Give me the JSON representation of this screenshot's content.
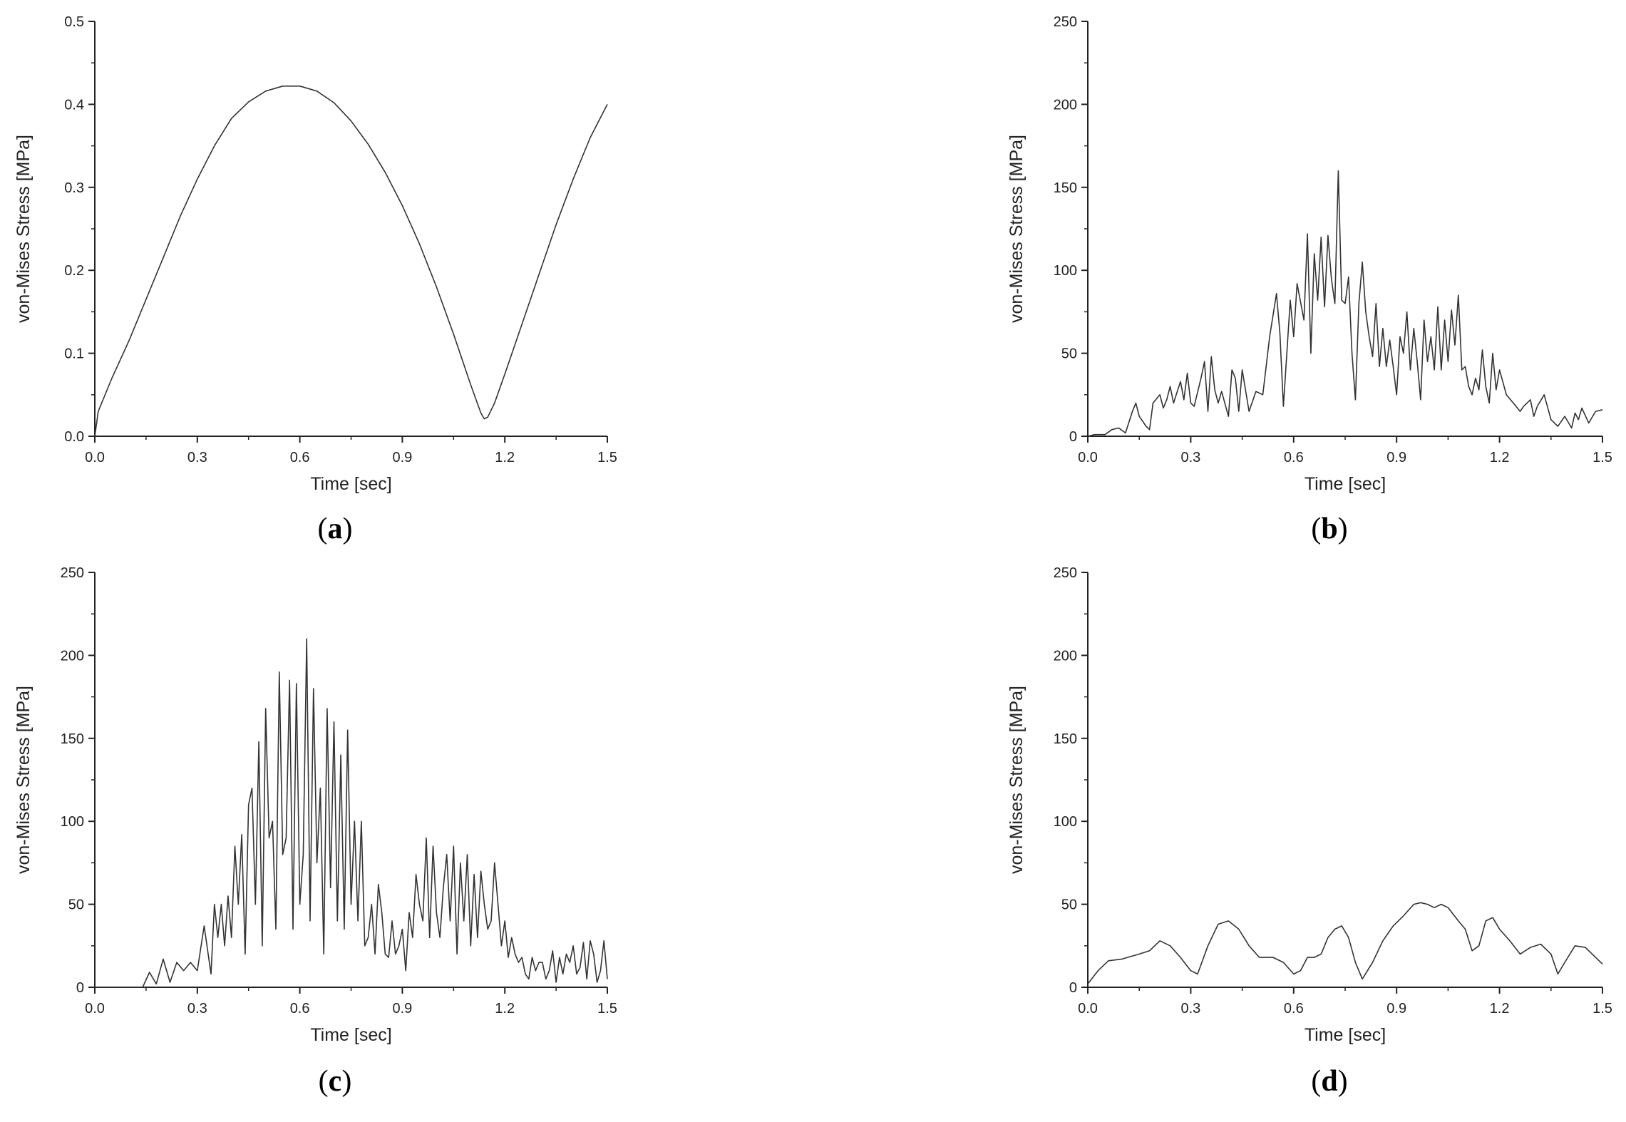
{
  "chart_data": [
    {
      "type": "line",
      "panel_label": "a",
      "xlabel": "Time [sec]",
      "ylabel": "von-Mises Stress [MPa]",
      "xlim": [
        0,
        1.5
      ],
      "ylim": [
        0,
        0.5
      ],
      "xticks": [
        0.0,
        0.3,
        0.6,
        0.9,
        1.2,
        1.5
      ],
      "yticks": [
        0.0,
        0.1,
        0.2,
        0.3,
        0.4,
        0.5
      ],
      "tick_decimals": 1,
      "grid": false,
      "series": [
        {
          "x": [
            0,
            0.01,
            0.05,
            0.1,
            0.15,
            0.2,
            0.25,
            0.3,
            0.35,
            0.4,
            0.45,
            0.5,
            0.55,
            0.6,
            0.65,
            0.7,
            0.75,
            0.8,
            0.85,
            0.9,
            0.95,
            1.0,
            1.05,
            1.1,
            1.13,
            1.14,
            1.15,
            1.17,
            1.2,
            1.25,
            1.3,
            1.35,
            1.4,
            1.45,
            1.5
          ],
          "y": [
            0.0,
            0.03,
            0.07,
            0.115,
            0.165,
            0.215,
            0.265,
            0.31,
            0.35,
            0.383,
            0.403,
            0.416,
            0.422,
            0.422,
            0.416,
            0.402,
            0.38,
            0.352,
            0.318,
            0.278,
            0.232,
            0.18,
            0.123,
            0.062,
            0.028,
            0.021,
            0.023,
            0.04,
            0.075,
            0.135,
            0.195,
            0.255,
            0.31,
            0.36,
            0.4
          ]
        }
      ]
    },
    {
      "type": "line",
      "panel_label": "b",
      "xlabel": "Time [sec]",
      "ylabel": "von-Mises Stress [MPa]",
      "xlim": [
        0,
        1.5
      ],
      "ylim": [
        0,
        250
      ],
      "xticks": [
        0.0,
        0.3,
        0.6,
        0.9,
        1.2,
        1.5
      ],
      "yticks": [
        0,
        50,
        100,
        150,
        200,
        250
      ],
      "tick_decimals": 0,
      "grid": false,
      "series": [
        {
          "x": [
            0,
            0.02,
            0.05,
            0.07,
            0.09,
            0.11,
            0.13,
            0.14,
            0.15,
            0.17,
            0.18,
            0.19,
            0.21,
            0.22,
            0.23,
            0.24,
            0.25,
            0.27,
            0.28,
            0.29,
            0.3,
            0.31,
            0.33,
            0.34,
            0.35,
            0.36,
            0.37,
            0.38,
            0.39,
            0.41,
            0.42,
            0.43,
            0.44,
            0.45,
            0.47,
            0.49,
            0.51,
            0.53,
            0.55,
            0.56,
            0.57,
            0.59,
            0.6,
            0.61,
            0.63,
            0.64,
            0.65,
            0.66,
            0.67,
            0.68,
            0.69,
            0.7,
            0.71,
            0.72,
            0.73,
            0.74,
            0.75,
            0.76,
            0.77,
            0.78,
            0.79,
            0.8,
            0.81,
            0.82,
            0.83,
            0.84,
            0.85,
            0.86,
            0.87,
            0.88,
            0.89,
            0.9,
            0.91,
            0.92,
            0.93,
            0.94,
            0.95,
            0.96,
            0.97,
            0.98,
            0.99,
            1.0,
            1.01,
            1.02,
            1.03,
            1.04,
            1.05,
            1.06,
            1.07,
            1.08,
            1.09,
            1.1,
            1.11,
            1.12,
            1.13,
            1.14,
            1.15,
            1.16,
            1.17,
            1.18,
            1.19,
            1.2,
            1.22,
            1.24,
            1.26,
            1.27,
            1.28,
            1.29,
            1.3,
            1.31,
            1.33,
            1.35,
            1.37,
            1.39,
            1.41,
            1.42,
            1.43,
            1.44,
            1.46,
            1.48,
            1.5
          ],
          "y": [
            0,
            1,
            1,
            4,
            5,
            2,
            15,
            20,
            12,
            6,
            4,
            20,
            25,
            17,
            22,
            30,
            20,
            33,
            22,
            38,
            20,
            18,
            35,
            45,
            15,
            48,
            28,
            20,
            27,
            12,
            40,
            35,
            15,
            40,
            15,
            27,
            25,
            60,
            86,
            62,
            18,
            82,
            60,
            92,
            70,
            122,
            50,
            110,
            82,
            120,
            78,
            121,
            95,
            80,
            160,
            82,
            80,
            96,
            50,
            22,
            80,
            105,
            75,
            60,
            48,
            80,
            42,
            65,
            42,
            58,
            42,
            25,
            60,
            50,
            75,
            40,
            65,
            45,
            22,
            70,
            45,
            60,
            40,
            78,
            40,
            70,
            45,
            76,
            55,
            85,
            40,
            42,
            30,
            25,
            35,
            28,
            52,
            30,
            20,
            50,
            28,
            40,
            25,
            20,
            15,
            18,
            20,
            22,
            12,
            18,
            25,
            10,
            6,
            12,
            5,
            14,
            10,
            17,
            8,
            15,
            16
          ]
        }
      ]
    },
    {
      "type": "line",
      "panel_label": "c",
      "xlabel": "Time [sec]",
      "ylabel": "von-Mises Stress [MPa]",
      "xlim": [
        0,
        1.5
      ],
      "ylim": [
        0,
        250
      ],
      "xticks": [
        0.0,
        0.3,
        0.6,
        0.9,
        1.2,
        1.5
      ],
      "yticks": [
        0,
        50,
        100,
        150,
        200,
        250
      ],
      "tick_decimals": 0,
      "grid": false,
      "series": [
        {
          "x": [
            0,
            0.14,
            0.16,
            0.18,
            0.2,
            0.22,
            0.24,
            0.26,
            0.28,
            0.3,
            0.32,
            0.34,
            0.35,
            0.36,
            0.37,
            0.38,
            0.39,
            0.4,
            0.41,
            0.42,
            0.43,
            0.44,
            0.45,
            0.46,
            0.47,
            0.48,
            0.49,
            0.5,
            0.51,
            0.52,
            0.53,
            0.54,
            0.55,
            0.56,
            0.57,
            0.58,
            0.59,
            0.6,
            0.61,
            0.62,
            0.63,
            0.64,
            0.65,
            0.66,
            0.67,
            0.68,
            0.69,
            0.7,
            0.71,
            0.72,
            0.73,
            0.74,
            0.75,
            0.76,
            0.77,
            0.78,
            0.79,
            0.8,
            0.81,
            0.82,
            0.83,
            0.84,
            0.85,
            0.86,
            0.87,
            0.88,
            0.89,
            0.9,
            0.91,
            0.92,
            0.93,
            0.94,
            0.95,
            0.96,
            0.97,
            0.98,
            0.99,
            1.0,
            1.01,
            1.02,
            1.03,
            1.04,
            1.05,
            1.06,
            1.07,
            1.08,
            1.09,
            1.1,
            1.11,
            1.12,
            1.13,
            1.14,
            1.15,
            1.16,
            1.17,
            1.18,
            1.19,
            1.2,
            1.21,
            1.22,
            1.23,
            1.24,
            1.25,
            1.26,
            1.27,
            1.28,
            1.29,
            1.3,
            1.31,
            1.32,
            1.33,
            1.34,
            1.35,
            1.36,
            1.37,
            1.38,
            1.39,
            1.4,
            1.41,
            1.42,
            1.43,
            1.44,
            1.45,
            1.46,
            1.47,
            1.48,
            1.49,
            1.5
          ],
          "y": [
            0,
            0,
            9,
            2,
            17,
            3,
            15,
            10,
            15,
            10,
            37,
            8,
            50,
            30,
            50,
            25,
            55,
            30,
            85,
            50,
            92,
            20,
            110,
            120,
            50,
            148,
            25,
            168,
            90,
            100,
            35,
            190,
            80,
            90,
            185,
            35,
            183,
            50,
            80,
            210,
            40,
            180,
            75,
            120,
            20,
            168,
            60,
            160,
            40,
            140,
            35,
            155,
            50,
            100,
            40,
            100,
            25,
            30,
            50,
            20,
            62,
            45,
            20,
            18,
            40,
            20,
            25,
            35,
            10,
            45,
            30,
            68,
            50,
            40,
            90,
            30,
            85,
            45,
            30,
            60,
            80,
            40,
            85,
            20,
            75,
            40,
            80,
            25,
            68,
            30,
            70,
            50,
            35,
            40,
            75,
            50,
            25,
            40,
            18,
            30,
            20,
            15,
            18,
            8,
            5,
            18,
            10,
            15,
            15,
            5,
            10,
            22,
            3,
            18,
            8,
            20,
            15,
            25,
            8,
            12,
            27,
            5,
            28,
            20,
            3,
            10,
            28,
            5
          ]
        }
      ]
    },
    {
      "type": "line",
      "panel_label": "d",
      "xlabel": "Time [sec]",
      "ylabel": "von-Mises Stress [MPa]",
      "xlim": [
        0,
        1.5
      ],
      "ylim": [
        0,
        250
      ],
      "xticks": [
        0.0,
        0.3,
        0.6,
        0.9,
        1.2,
        1.5
      ],
      "yticks": [
        0,
        50,
        100,
        150,
        200,
        250
      ],
      "tick_decimals": 0,
      "grid": false,
      "series": [
        {
          "x": [
            0,
            0.03,
            0.06,
            0.1,
            0.15,
            0.18,
            0.21,
            0.24,
            0.27,
            0.3,
            0.32,
            0.35,
            0.38,
            0.41,
            0.44,
            0.47,
            0.5,
            0.54,
            0.57,
            0.6,
            0.62,
            0.64,
            0.66,
            0.68,
            0.7,
            0.72,
            0.74,
            0.76,
            0.78,
            0.8,
            0.83,
            0.86,
            0.89,
            0.92,
            0.95,
            0.97,
            0.99,
            1.01,
            1.03,
            1.05,
            1.08,
            1.1,
            1.12,
            1.14,
            1.16,
            1.18,
            1.2,
            1.23,
            1.26,
            1.29,
            1.32,
            1.35,
            1.37,
            1.39,
            1.42,
            1.45,
            1.48,
            1.5
          ],
          "y": [
            2,
            10,
            16,
            17,
            20,
            22,
            28,
            25,
            18,
            10,
            8,
            25,
            38,
            40,
            35,
            25,
            18,
            18,
            15,
            8,
            10,
            18,
            18,
            20,
            30,
            35,
            37,
            30,
            15,
            5,
            15,
            28,
            37,
            43,
            50,
            51,
            50,
            48,
            50,
            48,
            40,
            35,
            22,
            25,
            40,
            42,
            35,
            28,
            20,
            24,
            26,
            20,
            8,
            15,
            25,
            24,
            18,
            14
          ]
        }
      ]
    }
  ]
}
